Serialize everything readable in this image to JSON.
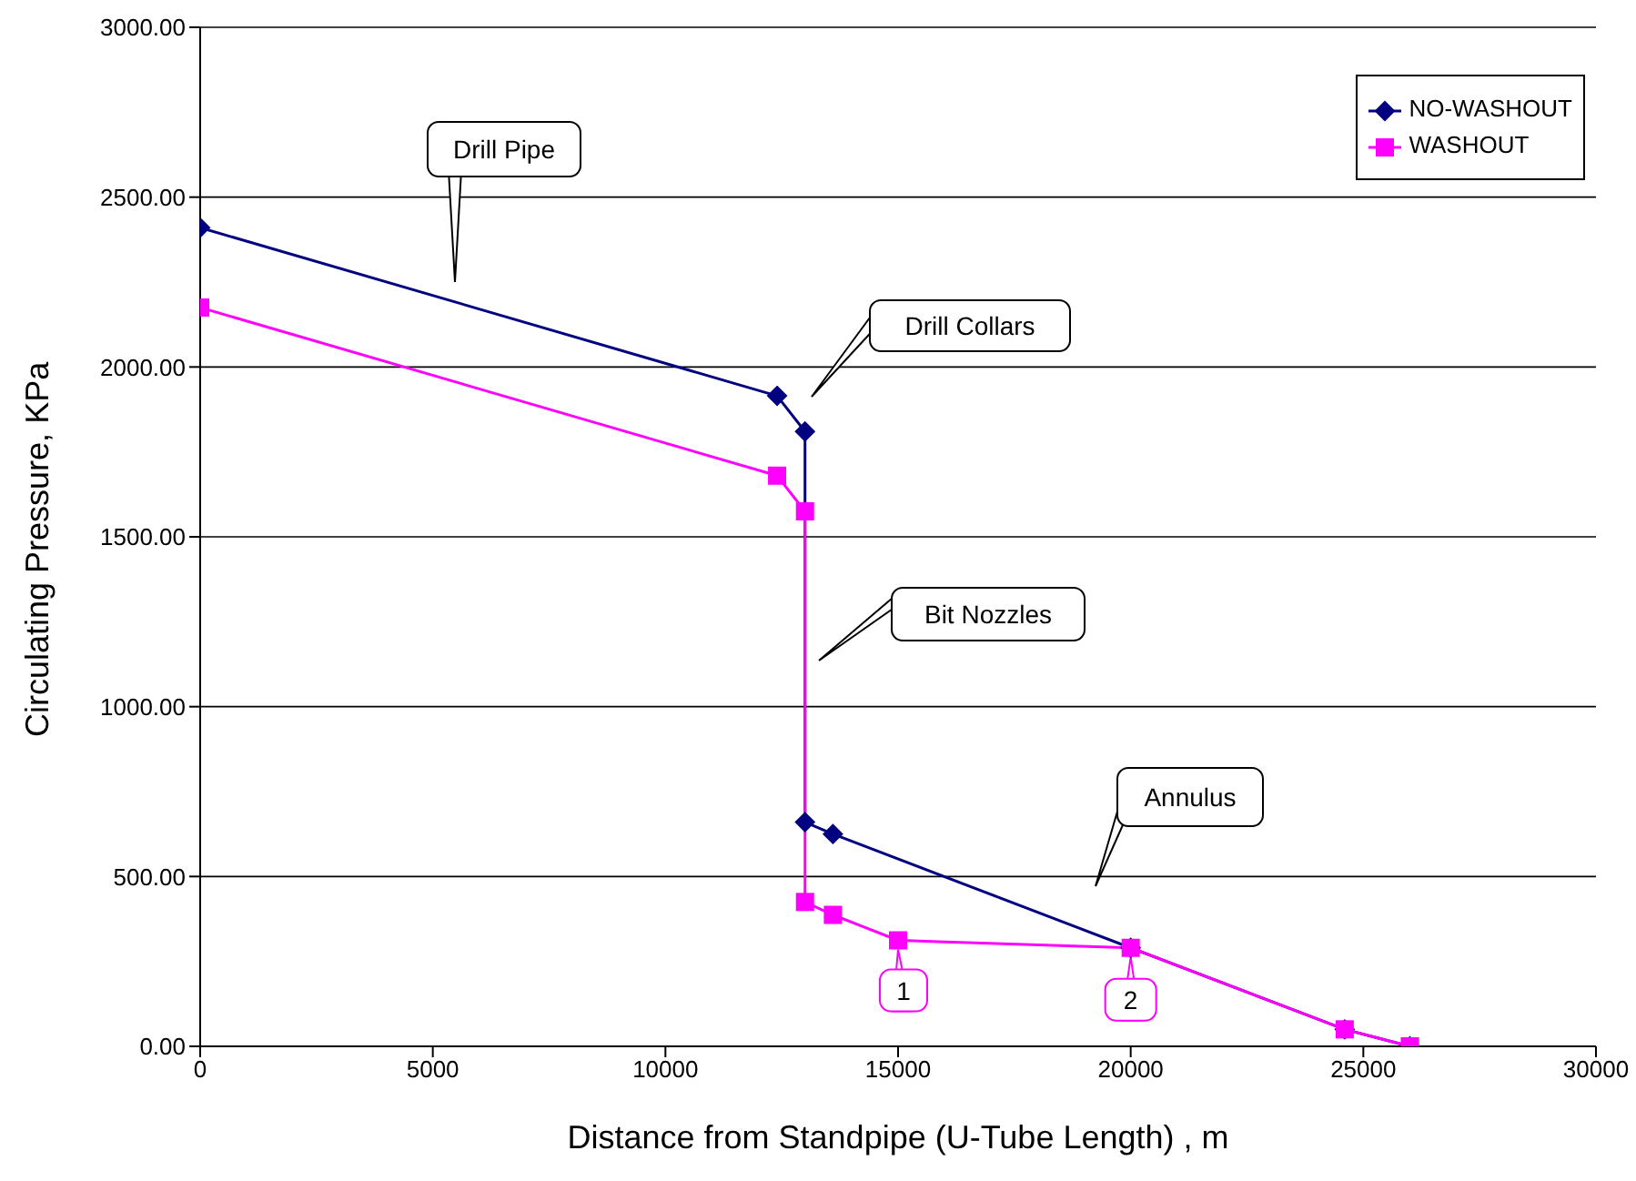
{
  "chart_data": {
    "type": "line",
    "xlabel": "Distance from Standpipe (U-Tube Length) , m",
    "ylabel": "Circulating Pressure, KPa",
    "xlim": [
      0,
      30000
    ],
    "xticks": [
      0,
      5000,
      10000,
      15000,
      20000,
      25000,
      30000
    ],
    "ylim": [
      0,
      3000
    ],
    "yticks": [
      {
        "value": 0,
        "label": "0.00"
      },
      {
        "value": 500,
        "label": "500.00"
      },
      {
        "value": 1000,
        "label": "1000.00"
      },
      {
        "value": 1500,
        "label": "1500.00"
      },
      {
        "value": 2000,
        "label": "2000.00"
      },
      {
        "value": 2500,
        "label": "2500.00"
      },
      {
        "value": 3000,
        "label": "3000.00"
      }
    ],
    "grid": "y",
    "legend": "top right",
    "series": [
      {
        "name": "NO-WASHOUT",
        "color": "#000080",
        "marker": "diamond",
        "x": [
          0,
          12400,
          13000,
          13000,
          13600,
          20000,
          24600,
          26000
        ],
        "values": [
          2410,
          1915,
          1810,
          660,
          625,
          290,
          50,
          0
        ]
      },
      {
        "name": "WASHOUT",
        "color": "#ff00ff",
        "marker": "square",
        "x": [
          0,
          12400,
          13000,
          13000,
          13600,
          15000,
          20000,
          24600,
          26000
        ],
        "values": [
          2175,
          1680,
          1575,
          425,
          387,
          312,
          290,
          50,
          0
        ]
      }
    ],
    "annotations": [
      "Drill Pipe",
      "Drill Collars",
      "Bit Nozzles",
      "Annulus",
      {
        "text": "1",
        "x": 15000,
        "y": 312
      },
      {
        "text": "2",
        "x": 20000,
        "y": 290
      }
    ]
  }
}
